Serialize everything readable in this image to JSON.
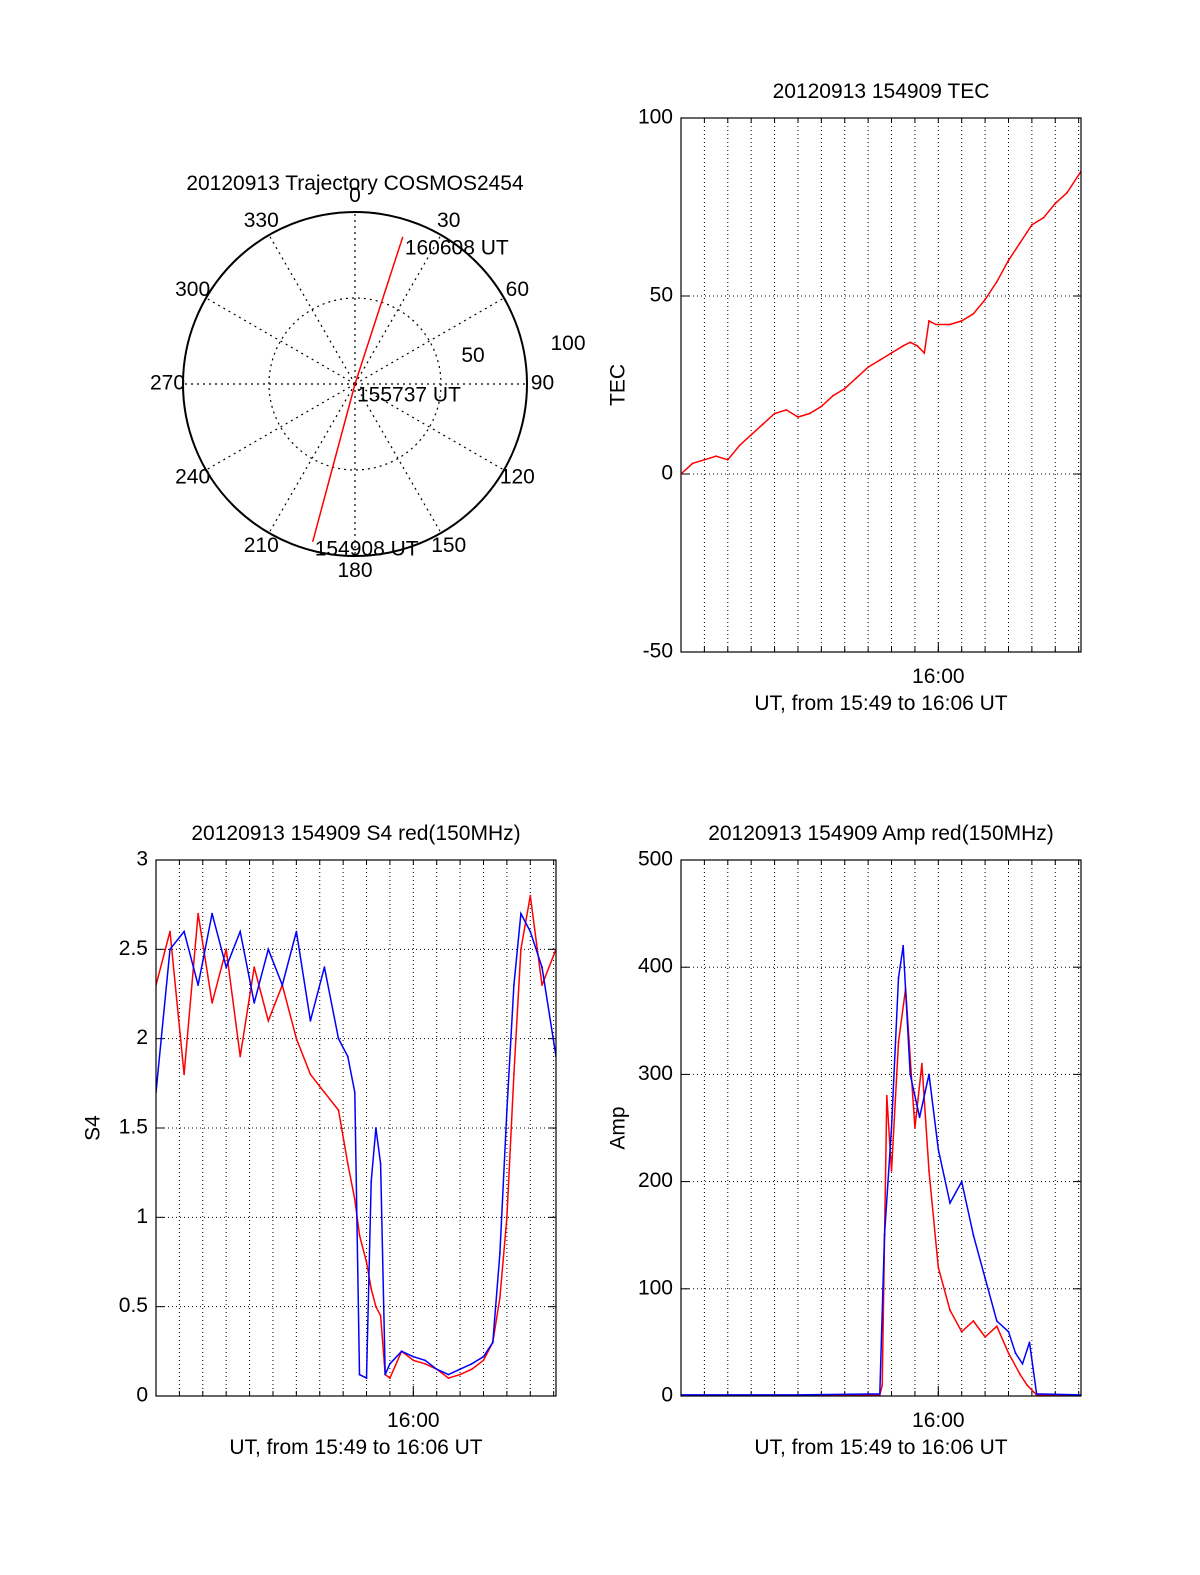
{
  "chart_data": [
    {
      "type": "polar",
      "title": "20120913 Trajectory COSMOS2454",
      "angle_ticks": [
        "0",
        "30",
        "60",
        "90",
        "120",
        "150",
        "180",
        "210",
        "240",
        "270",
        "300",
        "330"
      ],
      "radius_labels": [
        "50",
        "100"
      ],
      "rmax": 100,
      "grid": true,
      "series": [
        {
          "color": "#ff0000",
          "points": [
            {
              "az": 195,
              "r": 95
            },
            {
              "az": 0,
              "r": 0
            },
            {
              "az": 18,
              "r": 90
            }
          ]
        }
      ],
      "annotations": [
        {
          "text": "160608 UT",
          "az": 18,
          "r": 90
        },
        {
          "text": "155737 UT",
          "az": 0,
          "r": 0
        },
        {
          "text": "154908 UT",
          "az": 195,
          "r": 95
        }
      ]
    },
    {
      "type": "line",
      "title": "20120913 154909 TEC",
      "xlabel": "UT, from 15:49 to 16:06 UT",
      "ylabel": "TEC",
      "xlim": [
        0,
        17.1
      ],
      "ylim": [
        -50,
        100
      ],
      "xticks": [
        {
          "x": 11,
          "label": "16:00"
        }
      ],
      "yticks": [
        -50,
        0,
        50,
        100
      ],
      "grid": true,
      "series": [
        {
          "color": "#ff0000",
          "x": [
            0,
            0.5,
            1.0,
            1.5,
            2.0,
            2.5,
            3.0,
            3.5,
            4.0,
            4.5,
            5.0,
            5.5,
            6.0,
            6.5,
            7.0,
            7.5,
            8.0,
            8.5,
            9.0,
            9.5,
            9.8,
            10.1,
            10.4,
            10.6,
            10.9,
            11.5,
            12.0,
            12.5,
            13.0,
            13.5,
            14.0,
            14.5,
            15.0,
            15.5,
            16.0,
            16.5,
            17.1
          ],
          "y": [
            0,
            3,
            4,
            5,
            4,
            8,
            11,
            14,
            17,
            18,
            16,
            17,
            19,
            22,
            24,
            27,
            30,
            32,
            34,
            36,
            37,
            36,
            34,
            43,
            42,
            42,
            43,
            45,
            49,
            54,
            60,
            65,
            70,
            72,
            76,
            79,
            85
          ]
        }
      ]
    },
    {
      "type": "line",
      "title": "20120913 154909 S4 red(150MHz)",
      "xlabel": "UT, from 15:49 to 16:06 UT",
      "ylabel": "S4",
      "xlim": [
        0,
        17.1
      ],
      "ylim": [
        0,
        3
      ],
      "xticks": [
        {
          "x": 11,
          "label": "16:00"
        }
      ],
      "yticks": [
        "0",
        "0.5",
        "1",
        "1.5",
        "2",
        "2.5",
        "3"
      ],
      "grid": true,
      "series": [
        {
          "color": "#ff0000",
          "x": [
            0,
            0.6,
            1.2,
            1.8,
            2.4,
            3.0,
            3.6,
            4.2,
            4.8,
            5.4,
            6.0,
            6.6,
            7.2,
            7.8,
            8.2,
            8.5,
            8.7,
            9.0,
            9.2,
            9.4,
            9.6,
            9.8,
            10.0,
            10.5,
            11.0,
            11.5,
            12.0,
            12.5,
            13.0,
            13.5,
            14.0,
            14.4,
            14.7,
            15.0,
            15.3,
            15.6,
            16.0,
            16.5,
            17.1
          ],
          "y": [
            2.3,
            2.6,
            1.8,
            2.7,
            2.2,
            2.5,
            1.9,
            2.4,
            2.1,
            2.3,
            2.0,
            1.8,
            1.7,
            1.6,
            1.3,
            1.1,
            0.9,
            0.75,
            0.6,
            0.5,
            0.45,
            0.12,
            0.1,
            0.25,
            0.2,
            0.18,
            0.15,
            0.1,
            0.12,
            0.15,
            0.2,
            0.3,
            0.55,
            1.0,
            1.8,
            2.5,
            2.8,
            2.3,
            2.5
          ]
        },
        {
          "color": "#0000ff",
          "x": [
            0,
            0.6,
            1.2,
            1.8,
            2.4,
            3.0,
            3.6,
            4.2,
            4.8,
            5.4,
            6.0,
            6.6,
            7.2,
            7.8,
            8.2,
            8.5,
            8.7,
            9.0,
            9.2,
            9.4,
            9.6,
            9.8,
            10.0,
            10.5,
            11.0,
            11.5,
            12.0,
            12.5,
            13.0,
            13.5,
            14.0,
            14.4,
            14.7,
            15.0,
            15.3,
            15.6,
            16.0,
            16.5,
            17.1
          ],
          "y": [
            1.7,
            2.5,
            2.6,
            2.3,
            2.7,
            2.4,
            2.6,
            2.2,
            2.5,
            2.3,
            2.6,
            2.1,
            2.4,
            2.0,
            1.9,
            1.7,
            0.12,
            0.1,
            1.2,
            1.5,
            1.3,
            0.12,
            0.18,
            0.25,
            0.22,
            0.2,
            0.15,
            0.12,
            0.15,
            0.18,
            0.22,
            0.3,
            0.8,
            1.6,
            2.3,
            2.7,
            2.6,
            2.4,
            1.9
          ]
        }
      ]
    },
    {
      "type": "line",
      "title": "20120913 154909 Amp red(150MHz)",
      "xlabel": "UT, from 15:49 to 16:06 UT",
      "ylabel": "Amp",
      "xlim": [
        0,
        17.1
      ],
      "ylim": [
        0,
        500
      ],
      "xticks": [
        {
          "x": 11,
          "label": "16:00"
        }
      ],
      "yticks": [
        0,
        100,
        200,
        300,
        400,
        500
      ],
      "grid": true,
      "series": [
        {
          "color": "#ff0000",
          "x": [
            0,
            5,
            8.5,
            8.6,
            8.8,
            9.0,
            9.3,
            9.6,
            10.0,
            10.3,
            10.6,
            11.0,
            11.5,
            12.0,
            12.5,
            13.0,
            13.5,
            14.0,
            14.5,
            14.8,
            15.2,
            17.1
          ],
          "y": [
            0,
            0,
            1,
            10,
            280,
            210,
            330,
            380,
            250,
            310,
            210,
            120,
            80,
            60,
            70,
            55,
            65,
            40,
            20,
            10,
            1,
            0
          ]
        },
        {
          "color": "#0000ff",
          "x": [
            0,
            5,
            8.5,
            8.7,
            9.0,
            9.3,
            9.5,
            9.8,
            10.2,
            10.6,
            11.0,
            11.5,
            12.0,
            12.5,
            13.0,
            13.5,
            14.0,
            14.3,
            14.6,
            14.9,
            15.2,
            17.1
          ],
          "y": [
            1,
            1,
            2,
            150,
            250,
            390,
            420,
            300,
            260,
            300,
            230,
            180,
            200,
            150,
            110,
            70,
            60,
            40,
            30,
            50,
            2,
            1
          ]
        }
      ]
    }
  ]
}
